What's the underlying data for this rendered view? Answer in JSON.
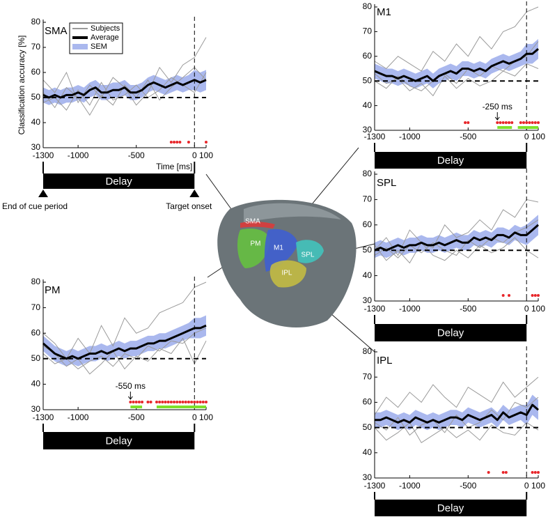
{
  "chart_data": [
    {
      "type": "line",
      "title": "SMA",
      "ylabel": "Classification accuracy [%]",
      "xlabel": "Time [ms]",
      "legend": "top-left",
      "xlim": [
        -1300,
        100
      ],
      "xticks": [
        -1300,
        -1000,
        -500,
        0,
        100
      ],
      "ylim": [
        30,
        80
      ],
      "yticks": [
        30,
        40,
        50,
        60,
        70,
        80
      ],
      "reference_line": 50,
      "event_line": 0,
      "delay_label": "Delay",
      "annotations": [
        "End of cue period",
        "Target onset"
      ],
      "x": [
        -1300,
        -1250,
        -1200,
        -1150,
        -1100,
        -1050,
        -1000,
        -950,
        -900,
        -850,
        -800,
        -750,
        -700,
        -650,
        -600,
        -550,
        -500,
        -450,
        -400,
        -350,
        -300,
        -250,
        -200,
        -150,
        -100,
        -50,
        0,
        50,
        100
      ],
      "series": [
        {
          "name": "Subjects",
          "color": "#9a9a9a",
          "x": [
            -1300,
            -1200,
            -1100,
            -1000,
            -900,
            -800,
            -700,
            -600,
            -500,
            -400,
            -300,
            -200,
            -100,
            0,
            100
          ],
          "values": [
            [
              57,
              52,
              60,
              48,
              55,
              50,
              58,
              54,
              47,
              52,
              62,
              56,
              63,
              66,
              74
            ],
            [
              48,
              50,
              45,
              53,
              47,
              56,
              49,
              51,
              55,
              50,
              53,
              58,
              55,
              52,
              60
            ],
            [
              52,
              46,
              54,
              50,
              43,
              51,
              47,
              55,
              50,
              57,
              49,
              54,
              58,
              62,
              57
            ]
          ]
        },
        {
          "name": "Average",
          "color": "#000000",
          "values": [
            51,
            50,
            51,
            50,
            51,
            51,
            52,
            51,
            53,
            54,
            52,
            52,
            53,
            53,
            54,
            52,
            52,
            53,
            55,
            56,
            55,
            54,
            55,
            56,
            55,
            56,
            57,
            56,
            57
          ]
        },
        {
          "name": "SEM",
          "color": "#aab8ee",
          "values": [
            3,
            3,
            3,
            3,
            3,
            3,
            3,
            3,
            3,
            3,
            3,
            3,
            3,
            3,
            3,
            3,
            3,
            3,
            3,
            3,
            3,
            3,
            3,
            3,
            3,
            3,
            4,
            4,
            4
          ]
        }
      ],
      "significant_times": [
        -200,
        -175,
        -150,
        -125,
        -50,
        100
      ],
      "significant_color": "#e8262a"
    },
    {
      "type": "line",
      "title": "M1",
      "xlim": [
        -1300,
        100
      ],
      "xticks": [
        -1300,
        -1000,
        -500,
        0,
        100
      ],
      "ylim": [
        30,
        80
      ],
      "yticks": [
        30,
        40,
        50,
        60,
        70,
        80
      ],
      "reference_line": 50,
      "event_line": 0,
      "delay_label": "Delay",
      "x": [
        -1300,
        -1250,
        -1200,
        -1150,
        -1100,
        -1050,
        -1000,
        -950,
        -900,
        -850,
        -800,
        -750,
        -700,
        -650,
        -600,
        -550,
        -500,
        -450,
        -400,
        -350,
        -300,
        -250,
        -200,
        -150,
        -100,
        -50,
        0,
        50,
        100
      ],
      "series": [
        {
          "color": "#9a9a9a",
          "x": [
            -1300,
            -1200,
            -1100,
            -1000,
            -900,
            -800,
            -700,
            -600,
            -500,
            -400,
            -300,
            -200,
            -100,
            0,
            100
          ],
          "values": [
            [
              58,
              55,
              60,
              57,
              54,
              62,
              58,
              65,
              60,
              68,
              63,
              70,
              72,
              78,
              80
            ],
            [
              50,
              47,
              52,
              48,
              46,
              50,
              53,
              49,
              55,
              52,
              56,
              54,
              58,
              60,
              66
            ],
            [
              53,
              49,
              51,
              46,
              49,
              44,
              52,
              47,
              51,
              48,
              50,
              54,
              52,
              57,
              55
            ]
          ]
        },
        {
          "color": "#000000",
          "values": [
            54,
            53,
            52,
            52,
            51,
            52,
            51,
            50,
            51,
            52,
            50,
            52,
            53,
            54,
            53,
            55,
            55,
            54,
            55,
            54,
            56,
            57,
            58,
            57,
            58,
            59,
            61,
            61,
            63
          ]
        },
        {
          "color": "#aab8ee",
          "values": [
            3,
            3,
            3,
            3,
            3,
            3,
            3,
            3,
            3,
            3,
            3,
            3,
            3,
            3,
            3,
            3,
            3,
            3,
            3,
            3,
            3,
            3,
            3,
            3,
            3,
            3,
            4,
            4,
            4
          ]
        }
      ],
      "significant_times": [
        -525,
        -500,
        -250,
        -225,
        -200,
        -175,
        -150,
        -125,
        -50,
        -25,
        0,
        25,
        50,
        75,
        100
      ],
      "significant_color": "#e8262a",
      "significant_intervals": [
        [
          -250,
          -125
        ],
        [
          -75,
          100
        ]
      ],
      "interval_color": "#7ee02a",
      "onset_marker": {
        "value": -250,
        "label": "-250 ms"
      }
    },
    {
      "type": "line",
      "title": "SPL",
      "xlim": [
        -1300,
        100
      ],
      "xticks": [
        -1300,
        -1000,
        -500,
        0,
        100
      ],
      "ylim": [
        30,
        80
      ],
      "yticks": [
        30,
        40,
        50,
        60,
        70,
        80
      ],
      "reference_line": 50,
      "event_line": 0,
      "delay_label": "Delay",
      "x": [
        -1300,
        -1250,
        -1200,
        -1150,
        -1100,
        -1050,
        -1000,
        -950,
        -900,
        -850,
        -800,
        -750,
        -700,
        -650,
        -600,
        -550,
        -500,
        -450,
        -400,
        -350,
        -300,
        -250,
        -200,
        -150,
        -100,
        -50,
        0,
        50,
        100
      ],
      "series": [
        {
          "color": "#9a9a9a",
          "x": [
            -1300,
            -1200,
            -1100,
            -1000,
            -900,
            -800,
            -700,
            -600,
            -500,
            -400,
            -300,
            -200,
            -100,
            0,
            100
          ],
          "values": [
            [
              50,
              55,
              48,
              58,
              53,
              51,
              60,
              55,
              57,
              62,
              58,
              66,
              63,
              70,
              69
            ],
            [
              48,
              51,
              47,
              52,
              49,
              53,
              50,
              48,
              54,
              51,
              55,
              53,
              57,
              59,
              62
            ],
            [
              52,
              46,
              50,
              45,
              53,
              48,
              46,
              50,
              47,
              52,
              49,
              51,
              55,
              50,
              47
            ]
          ]
        },
        {
          "color": "#000000",
          "values": [
            50,
            51,
            50,
            51,
            52,
            51,
            52,
            52,
            53,
            52,
            52,
            53,
            52,
            53,
            54,
            53,
            53,
            55,
            54,
            55,
            54,
            56,
            56,
            55,
            57,
            56,
            56,
            58,
            60
          ]
        },
        {
          "color": "#aab8ee",
          "values": [
            3,
            3,
            3,
            3,
            3,
            3,
            3,
            3,
            3,
            3,
            3,
            3,
            3,
            3,
            3,
            3,
            3,
            3,
            3,
            3,
            3,
            3,
            3,
            3,
            3,
            3,
            4,
            4,
            4
          ]
        }
      ],
      "significant_times": [
        -200,
        -150,
        50,
        75,
        100
      ],
      "significant_color": "#e8262a"
    },
    {
      "type": "line",
      "title": "PM",
      "xlim": [
        -1300,
        100
      ],
      "xticks": [
        -1300,
        -1000,
        -500,
        0,
        100
      ],
      "ylim": [
        30,
        80
      ],
      "yticks": [
        30,
        40,
        50,
        60,
        70,
        80
      ],
      "reference_line": 50,
      "event_line": 0,
      "delay_label": "Delay",
      "x": [
        -1300,
        -1250,
        -1200,
        -1150,
        -1100,
        -1050,
        -1000,
        -950,
        -900,
        -850,
        -800,
        -750,
        -700,
        -650,
        -600,
        -550,
        -500,
        -450,
        -400,
        -350,
        -300,
        -250,
        -200,
        -150,
        -100,
        -50,
        0,
        50,
        100
      ],
      "series": [
        {
          "color": "#9a9a9a",
          "x": [
            -1300,
            -1200,
            -1100,
            -1000,
            -900,
            -800,
            -700,
            -600,
            -500,
            -400,
            -300,
            -200,
            -100,
            0,
            100
          ],
          "values": [
            [
              60,
              56,
              50,
              58,
              52,
              63,
              55,
              66,
              60,
              62,
              68,
              70,
              72,
              78,
              80
            ],
            [
              52,
              48,
              50,
              46,
              49,
              51,
              47,
              52,
              50,
              55,
              53,
              57,
              56,
              60,
              62
            ],
            [
              55,
              52,
              47,
              50,
              44,
              48,
              53,
              46,
              51,
              49,
              54,
              52,
              58,
              48,
              57
            ]
          ]
        },
        {
          "color": "#000000",
          "values": [
            56,
            54,
            52,
            51,
            50,
            51,
            50,
            51,
            52,
            52,
            53,
            52,
            53,
            54,
            53,
            54,
            54,
            55,
            56,
            56,
            57,
            57,
            58,
            59,
            60,
            61,
            62,
            62,
            63
          ]
        },
        {
          "color": "#aab8ee",
          "values": [
            3,
            3,
            3,
            3,
            3,
            3,
            3,
            3,
            3,
            3,
            3,
            3,
            3,
            3,
            3,
            3,
            3,
            3,
            3,
            3,
            3,
            3,
            3,
            3,
            3,
            3,
            4,
            4,
            4
          ]
        }
      ],
      "significant_times": [
        -550,
        -525,
        -500,
        -475,
        -450,
        -400,
        -375,
        -325,
        -300,
        -275,
        -250,
        -225,
        -200,
        -175,
        -150,
        -125,
        -100,
        -75,
        -50,
        -25,
        0,
        25,
        50,
        75,
        100
      ],
      "significant_color": "#e8262a",
      "significant_intervals": [
        [
          -550,
          -450
        ],
        [
          -325,
          100
        ]
      ],
      "interval_color": "#7ee02a",
      "onset_marker": {
        "value": -550,
        "label": "-550 ms"
      }
    },
    {
      "type": "line",
      "title": "IPL",
      "xlim": [
        -1300,
        100
      ],
      "xticks": [
        -1300,
        -1000,
        -500,
        0,
        100
      ],
      "ylim": [
        30,
        80
      ],
      "yticks": [
        30,
        40,
        50,
        60,
        70,
        80
      ],
      "reference_line": 50,
      "event_line": 0,
      "delay_label": "Delay",
      "x": [
        -1300,
        -1250,
        -1200,
        -1150,
        -1100,
        -1050,
        -1000,
        -950,
        -900,
        -850,
        -800,
        -750,
        -700,
        -650,
        -600,
        -550,
        -500,
        -450,
        -400,
        -350,
        -300,
        -250,
        -200,
        -150,
        -100,
        -50,
        0,
        50,
        100
      ],
      "series": [
        {
          "color": "#9a9a9a",
          "x": [
            -1300,
            -1200,
            -1100,
            -1000,
            -900,
            -800,
            -700,
            -600,
            -500,
            -400,
            -300,
            -200,
            -100,
            0,
            100
          ],
          "values": [
            [
              55,
              62,
              58,
              64,
              60,
              67,
              62,
              58,
              66,
              63,
              60,
              68,
              62,
              66,
              70
            ],
            [
              52,
              49,
              54,
              47,
              51,
              53,
              48,
              55,
              50,
              52,
              57,
              53,
              60,
              58,
              62
            ],
            [
              50,
              45,
              48,
              52,
              44,
              47,
              50,
              46,
              49,
              45,
              51,
              48,
              47,
              52,
              49
            ]
          ]
        },
        {
          "color": "#000000",
          "values": [
            53,
            53,
            54,
            53,
            52,
            53,
            52,
            54,
            53,
            52,
            53,
            52,
            53,
            54,
            54,
            53,
            55,
            54,
            53,
            54,
            55,
            53,
            56,
            54,
            55,
            56,
            55,
            59,
            57
          ]
        },
        {
          "color": "#aab8ee",
          "values": [
            3,
            3,
            3,
            3,
            3,
            3,
            3,
            3,
            3,
            3,
            3,
            3,
            3,
            3,
            3,
            3,
            3,
            3,
            3,
            3,
            3,
            3,
            3,
            3,
            3,
            3,
            4,
            4,
            4
          ]
        }
      ],
      "significant_times": [
        -325,
        -200,
        -175,
        50,
        75,
        100
      ],
      "significant_color": "#e8262a"
    }
  ],
  "brain": {
    "labels": [
      "SMA",
      "PM",
      "M1",
      "SPL",
      "IPL"
    ]
  }
}
